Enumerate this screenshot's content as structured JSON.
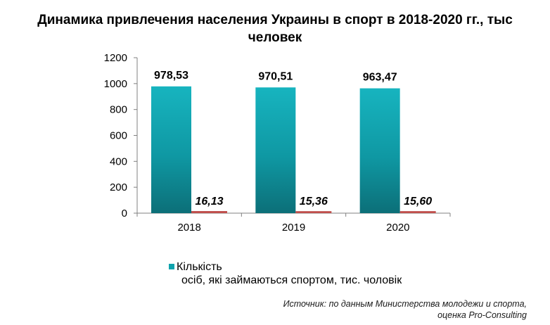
{
  "title_line1": "Динамика привлечения населения Украины в спорт в 2018-2020 гг., тыс",
  "title_line2": "человек",
  "chart_data": {
    "type": "bar",
    "categories": [
      "2018",
      "2019",
      "2020"
    ],
    "series": [
      {
        "name": "Кількість осіб, які займаються спортом, тис. чоловік",
        "values": [
          978.53,
          970.51,
          963.47
        ],
        "labels": [
          "978,53",
          "970,51",
          "963,47"
        ],
        "color": "#0fa3ad"
      },
      {
        "values": [
          16.13,
          15.36,
          15.6
        ],
        "labels": [
          "16,13",
          "15,36",
          "15,60"
        ],
        "color": "#c0504d"
      }
    ],
    "ylim": [
      0,
      1200
    ],
    "yticks": [
      "0",
      "200",
      "400",
      "600",
      "800",
      "1000",
      "1200"
    ],
    "grid": false,
    "legend_position": "bottom"
  },
  "legend": {
    "line1": "Кількість",
    "line2": "осіб, які займаються спортом, тис. чоловік"
  },
  "source": {
    "line1": "Источник: по данным Министерства молодежи и спорта,",
    "line2": "оценка Pro-Consulting"
  }
}
